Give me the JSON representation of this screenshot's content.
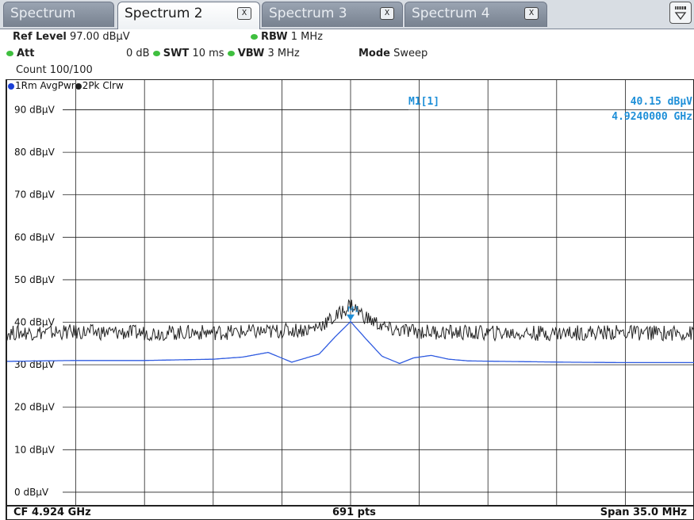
{
  "tabs": [
    {
      "label": "Spectrum",
      "active": false,
      "closable": false
    },
    {
      "label": "Spectrum 2",
      "active": true,
      "closable": true
    },
    {
      "label": "Spectrum 3",
      "active": false,
      "closable": true
    },
    {
      "label": "Spectrum 4",
      "active": false,
      "closable": true
    }
  ],
  "close_glyph": "X",
  "settings": {
    "ref_level_label": "Ref Level",
    "ref_level_value": "97.00 dBµV",
    "att_label": "Att",
    "att_value": "0 dB",
    "swt_label": "SWT",
    "swt_value": "10 ms",
    "rbw_label": "RBW",
    "rbw_value": "1 MHz",
    "vbw_label": "VBW",
    "vbw_value": "3 MHz",
    "mode_label": "Mode",
    "mode_value": "Sweep",
    "count": "Count 100/100"
  },
  "traces_legend": {
    "trace1": "1Rm AvgPwr",
    "trace2": "2Pk Clrw",
    "trace1_color": "#1a3fd6",
    "trace2_color": "#222222"
  },
  "marker": {
    "label": "M1[1]",
    "level": "40.15 dBµV",
    "frequency": "4.9240000 GHz",
    "color": "#1e8fd8"
  },
  "footer": {
    "cf": "CF 4.924 GHz",
    "points": "691 pts",
    "span": "Span 35.0 MHz"
  },
  "chart_data": {
    "type": "line",
    "y_unit": "dBµV",
    "y_tick_labels": [
      "90 dBµV",
      "80 dBµV",
      "70 dBµV",
      "60 dBµV",
      "50 dBµV",
      "40 dBµV",
      "30 dBµV",
      "20 dBµV",
      "10 dBµV",
      "0 dBµV"
    ],
    "y_ticks": [
      90,
      80,
      70,
      60,
      50,
      40,
      30,
      20,
      10,
      0
    ],
    "ylim": [
      -3,
      97
    ],
    "xlim": [
      4906.5,
      4941.5
    ],
    "x_unit": "MHz",
    "center_frequency_mhz": 4924,
    "span_mhz": 35,
    "grid": true,
    "series": [
      {
        "name": "1Rm AvgPwr",
        "color": "#2f5be0",
        "x": [
          4906.5,
          4910,
          4913.5,
          4917,
          4918.5,
          4919.8,
          4921,
          4922.4,
          4923.2,
          4924,
          4924.8,
          4925.6,
          4926.5,
          4927.2,
          4928.1,
          4929,
          4930,
          4931.5,
          4935,
          4938,
          4941.5
        ],
        "y": [
          30.8,
          31.0,
          31.0,
          31.3,
          31.8,
          32.9,
          30.6,
          32.5,
          36.5,
          40.15,
          36.0,
          32.0,
          30.3,
          31.6,
          32.2,
          31.3,
          30.9,
          30.8,
          30.6,
          30.5,
          30.5
        ]
      },
      {
        "name": "2Pk Clrw",
        "color": "#222222",
        "x": [
          4906.5,
          4910,
          4913.5,
          4917,
          4920,
          4922,
          4923.2,
          4924,
          4924.8,
          4926,
          4927.5,
          4930,
          4933.5,
          4937,
          4941.5
        ],
        "y": [
          37.5,
          37.7,
          37.5,
          37.6,
          37.8,
          38.4,
          41.0,
          44.2,
          41.0,
          38.2,
          37.8,
          37.5,
          37.4,
          37.6,
          37.4
        ]
      }
    ],
    "marker": {
      "name": "M1",
      "x": 4924,
      "y": 40.15
    }
  }
}
